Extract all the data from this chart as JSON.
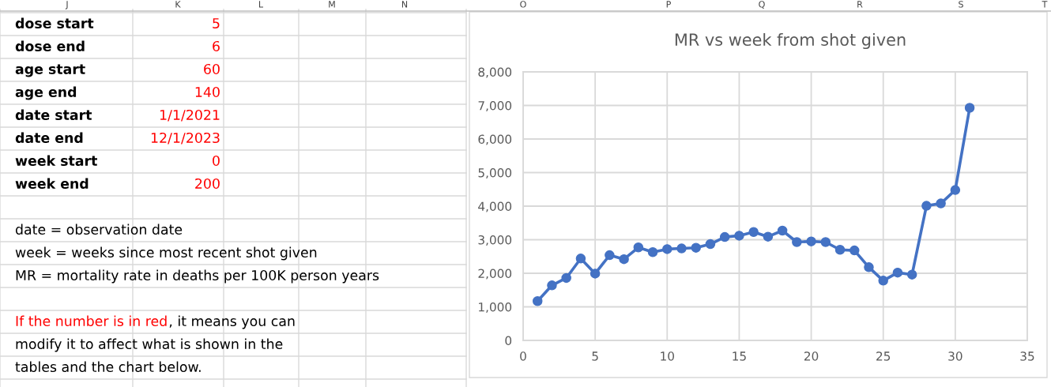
{
  "chart_data": {
    "type": "line",
    "title": "MR vs week from shot given",
    "x": [
      1,
      2,
      3,
      4,
      5,
      6,
      7,
      8,
      9,
      10,
      11,
      12,
      13,
      14,
      15,
      16,
      17,
      18,
      19,
      20,
      21,
      22,
      23,
      24,
      25,
      26,
      27,
      28,
      29,
      30,
      31
    ],
    "series": [
      {
        "color": "#4472c4",
        "values": [
          1170,
          1640,
          1860,
          2440,
          1990,
          2540,
          2420,
          2770,
          2630,
          2720,
          2740,
          2760,
          2870,
          3080,
          3120,
          3230,
          3090,
          3270,
          2930,
          2950,
          2930,
          2700,
          2680,
          2180,
          1780,
          2020,
          1960,
          4010,
          4080,
          4480,
          6930
        ]
      }
    ],
    "xlim": [
      0,
      35
    ],
    "xticks": [
      0,
      5,
      10,
      15,
      20,
      25,
      30,
      35
    ],
    "ylim": [
      0,
      8000
    ],
    "yticks": [
      {
        "value": 0,
        "label": "0"
      },
      {
        "value": 1000,
        "label": "1,000"
      },
      {
        "value": 2000,
        "label": "2,000"
      },
      {
        "value": 3000,
        "label": "3,000"
      },
      {
        "value": 4000,
        "label": "4,000"
      },
      {
        "value": 5000,
        "label": "5,000"
      },
      {
        "value": 6000,
        "label": "6,000"
      },
      {
        "value": 7000,
        "label": "7,000"
      },
      {
        "value": 8000,
        "label": "8,000"
      }
    ],
    "grid": true,
    "marker": "circle",
    "line_style": "solid",
    "annotations": [
      "J",
      "K",
      "L",
      "M",
      "N",
      "O",
      "P",
      "Q",
      "R",
      "S",
      "T",
      "dose start",
      "5",
      "dose end",
      "6",
      "age start",
      "60",
      "age end",
      "140",
      "date start",
      "1/1/2021",
      "date end",
      "12/1/2023",
      "week start",
      "0",
      "week end",
      "200",
      "date = observation date",
      "week = weeks since most recent shot given",
      "MR = mortality rate in deaths per 100K person years",
      "If the number is in red",
      ", it means you can",
      "modify it to affect what is shown in the",
      "tables and the chart below."
    ]
  }
}
